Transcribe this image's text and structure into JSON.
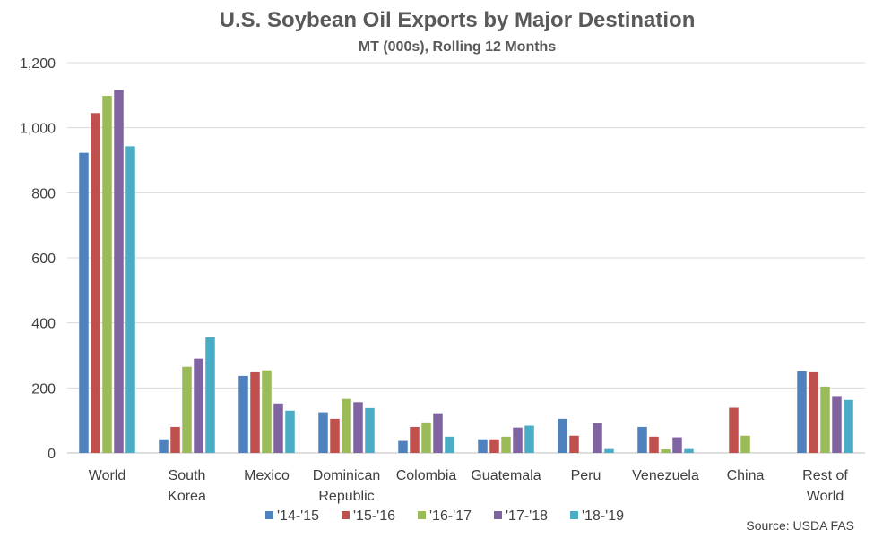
{
  "chart_data": {
    "type": "bar",
    "title": "U.S. Soybean Oil Exports by Major Destination",
    "subtitle": "MT (000s), Rolling 12 Months",
    "source": "Source: USDA FAS",
    "ylim": [
      0,
      1200
    ],
    "yticks": [
      0,
      200,
      400,
      600,
      800,
      1000,
      1200
    ],
    "ytick_labels": [
      "0",
      "200",
      "400",
      "600",
      "800",
      "1,000",
      "1,200"
    ],
    "grid": true,
    "legend_position": "bottom",
    "categories": [
      [
        "World"
      ],
      [
        "South",
        "Korea"
      ],
      [
        "Mexico"
      ],
      [
        "Dominican",
        "Republic"
      ],
      [
        "Colombia"
      ],
      [
        "Guatemala"
      ],
      [
        "Peru"
      ],
      [
        "Venezuela"
      ],
      [
        "China"
      ],
      [
        "Rest of",
        "World"
      ]
    ],
    "series": [
      {
        "name": "'14-'15",
        "color": "#4F81BD",
        "values": [
          923,
          42,
          237,
          125,
          37,
          42,
          105,
          80,
          0,
          251
        ]
      },
      {
        "name": "'15-'16",
        "color": "#C0504D",
        "values": [
          1045,
          80,
          248,
          105,
          80,
          42,
          53,
          50,
          139,
          248
        ]
      },
      {
        "name": "'16-'17",
        "color": "#9BBB59",
        "values": [
          1098,
          265,
          254,
          166,
          94,
          50,
          0,
          11,
          53,
          204
        ]
      },
      {
        "name": "'17-'18",
        "color": "#8064A2",
        "values": [
          1116,
          290,
          152,
          156,
          122,
          78,
          92,
          48,
          0,
          175
        ]
      },
      {
        "name": "'18-'19",
        "color": "#4BACC6",
        "values": [
          943,
          356,
          130,
          138,
          50,
          84,
          12,
          12,
          0,
          163
        ]
      }
    ]
  }
}
